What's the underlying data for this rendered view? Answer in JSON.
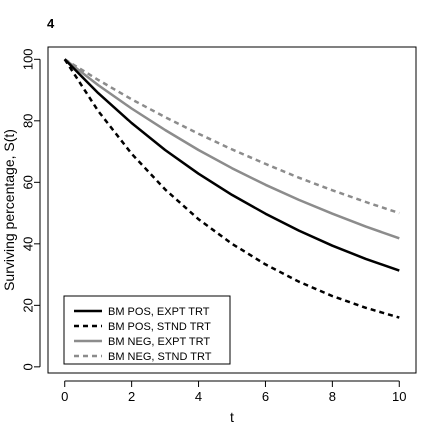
{
  "panel_label": "4",
  "chart_data": {
    "type": "line",
    "title": "",
    "xlabel": "t",
    "ylabel": "Surviving percentage, S(t)",
    "xlim": [
      -0.5,
      10.5
    ],
    "ylim": [
      -2,
      104
    ],
    "xticks": [
      0,
      2,
      4,
      6,
      8,
      10
    ],
    "yticks": [
      0,
      20,
      40,
      60,
      80,
      100
    ],
    "grid": false,
    "legend_position": "bottom-left",
    "x": [
      0,
      1,
      2,
      3,
      4,
      5,
      6,
      7,
      8,
      9,
      10
    ],
    "series": [
      {
        "name": "BM POS, EXPT TRT",
        "color": "#000000",
        "style": "solid",
        "values": [
          100,
          89.0,
          79.3,
          70.5,
          62.8,
          55.9,
          49.8,
          44.3,
          39.4,
          35.1,
          31.3
        ]
      },
      {
        "name": "BM POS, STND TRT",
        "color": "#000000",
        "style": "dashed",
        "values": [
          100,
          83.2,
          69.3,
          57.7,
          48.0,
          40.0,
          33.3,
          27.7,
          23.0,
          19.2,
          16.0
        ]
      },
      {
        "name": "BM NEG, EXPT TRT",
        "color": "#8c8c8c",
        "style": "solid",
        "values": [
          100,
          91.6,
          84.0,
          77.0,
          70.5,
          64.6,
          59.2,
          54.3,
          49.8,
          45.6,
          41.8
        ]
      },
      {
        "name": "BM NEG, STND TRT",
        "color": "#8c8c8c",
        "style": "dashed",
        "values": [
          100,
          93.3,
          87.0,
          81.2,
          75.8,
          70.7,
          66.0,
          61.5,
          57.4,
          53.6,
          50.0
        ]
      }
    ]
  }
}
